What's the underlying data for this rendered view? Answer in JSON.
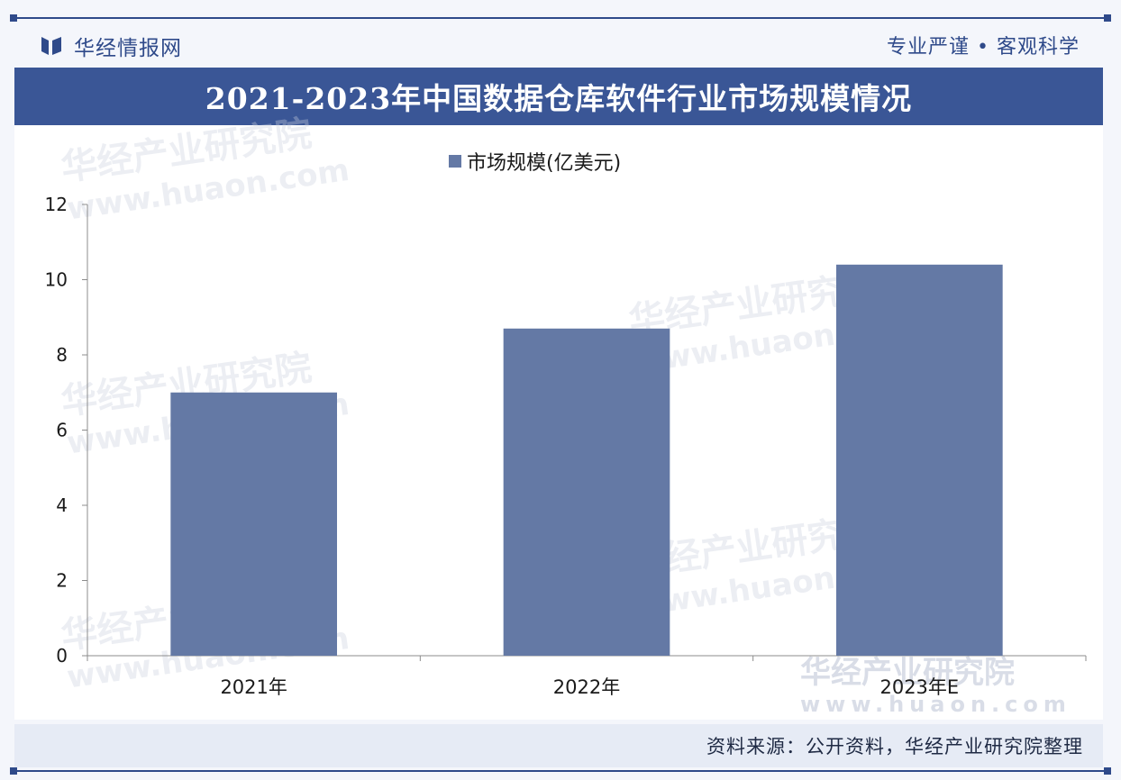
{
  "header": {
    "brand": "华经情报网",
    "motto": "专业严谨 • 客观科学"
  },
  "title": "2021-2023年中国数据仓库软件行业市场规模情况",
  "footer": {
    "source": "资料来源：公开资料，华经产业研究院整理"
  },
  "watermark": {
    "name": "华经产业研究院",
    "url": "www.huaon.com"
  },
  "colors": {
    "bar": "#6479a5",
    "title_bg": "#3a5696",
    "accent": "#2f4a8a"
  },
  "chart_data": {
    "type": "bar",
    "categories": [
      "2021年",
      "2022年",
      "2023年E"
    ],
    "series": [
      {
        "name": "市场规模(亿美元)",
        "values": [
          7.0,
          8.7,
          10.4
        ]
      }
    ],
    "ylim": [
      0,
      12
    ],
    "yticks": [
      0,
      2,
      4,
      6,
      8,
      10,
      12
    ],
    "grid": false,
    "legend": "top-center"
  }
}
